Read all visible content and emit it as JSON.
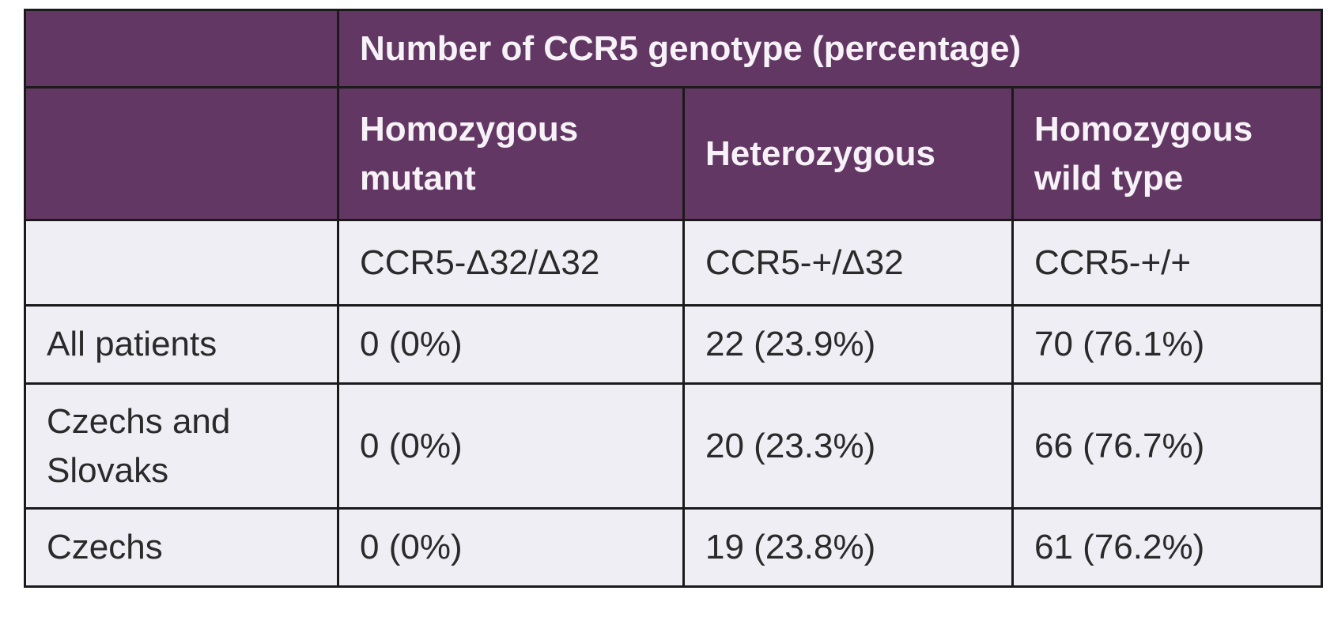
{
  "table": {
    "super_header": "Number of CCR5 genotype (percentage)",
    "columns": [
      "Homozygous mutant",
      "Heterozygous",
      "Homozygous wild type"
    ],
    "genotypes": [
      "CCR5-Δ32/Δ32",
      "CCR5-+/Δ32",
      "CCR5-+/+"
    ],
    "rows": [
      {
        "label": "All patients",
        "values": [
          "0 (0%)",
          "22 (23.9%)",
          "70 (76.1%)"
        ]
      },
      {
        "label": "Czechs and Slovaks",
        "values": [
          "0 (0%)",
          "20 (23.3%)",
          "66 (76.7%)"
        ]
      },
      {
        "label": "Czechs",
        "values": [
          "0 (0%)",
          "19 (23.8%)",
          "61 (76.2%)"
        ]
      }
    ]
  },
  "colors": {
    "header_bg": "#623763",
    "header_text": "#f6f2f7",
    "body_bg": "#efeef5",
    "border": "#1a1a1a"
  }
}
